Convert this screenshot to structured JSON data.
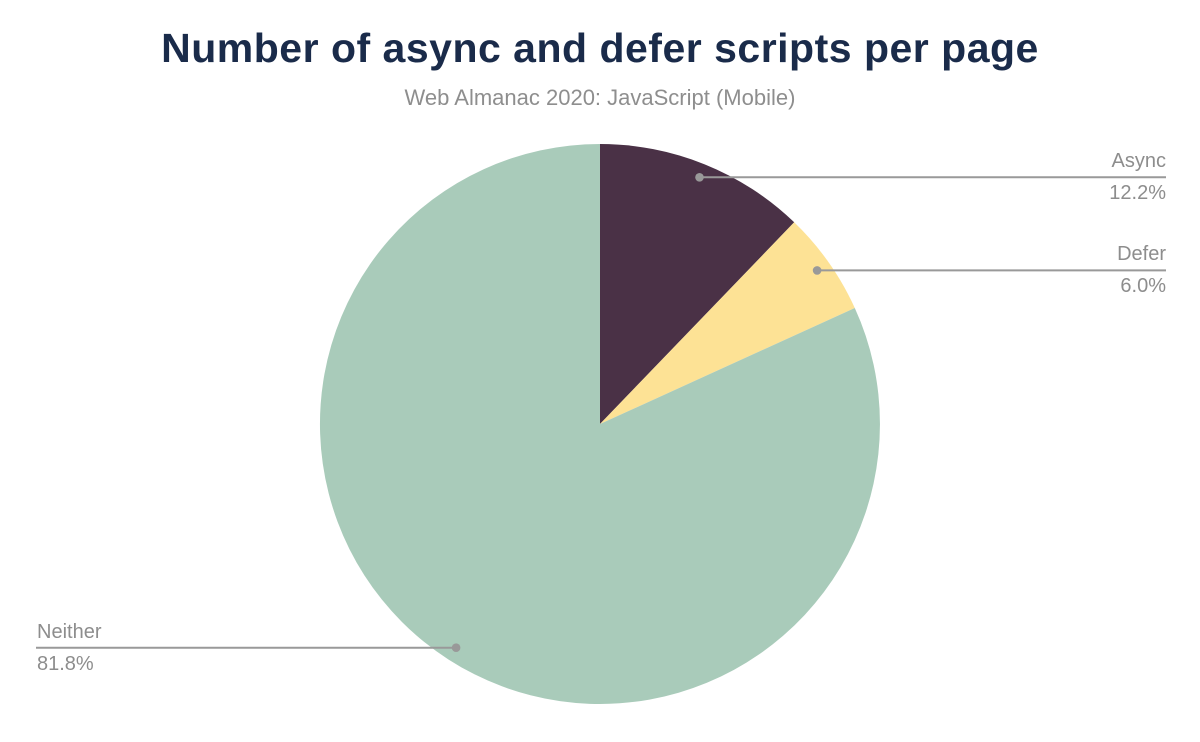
{
  "header": {
    "title": "Number of async and defer scripts per page",
    "subtitle": "Web Almanac 2020: JavaScript (Mobile)"
  },
  "chart_data": {
    "type": "pie",
    "title": "Number of async and defer scripts per page",
    "subtitle": "Web Almanac 2020: JavaScript (Mobile)",
    "total": 100,
    "start_angle_deg": 0,
    "direction": "clockwise",
    "legend_position": "callouts",
    "slices": [
      {
        "label": "Async",
        "value": 12.2,
        "display": "12.2%",
        "color": "#4a3146",
        "callout_side": "right"
      },
      {
        "label": "Defer",
        "value": 6.0,
        "display": "6.0%",
        "color": "#fde295",
        "callout_side": "right"
      },
      {
        "label": "Neither",
        "value": 81.8,
        "display": "81.8%",
        "color": "#a9cbba",
        "callout_side": "left"
      }
    ]
  },
  "style": {
    "title_color": "#1a2b4a",
    "subtitle_color": "#8e8e8e",
    "label_color": "#8d8d8d",
    "leader_color": "#999999",
    "background_color": "#ffffff"
  }
}
